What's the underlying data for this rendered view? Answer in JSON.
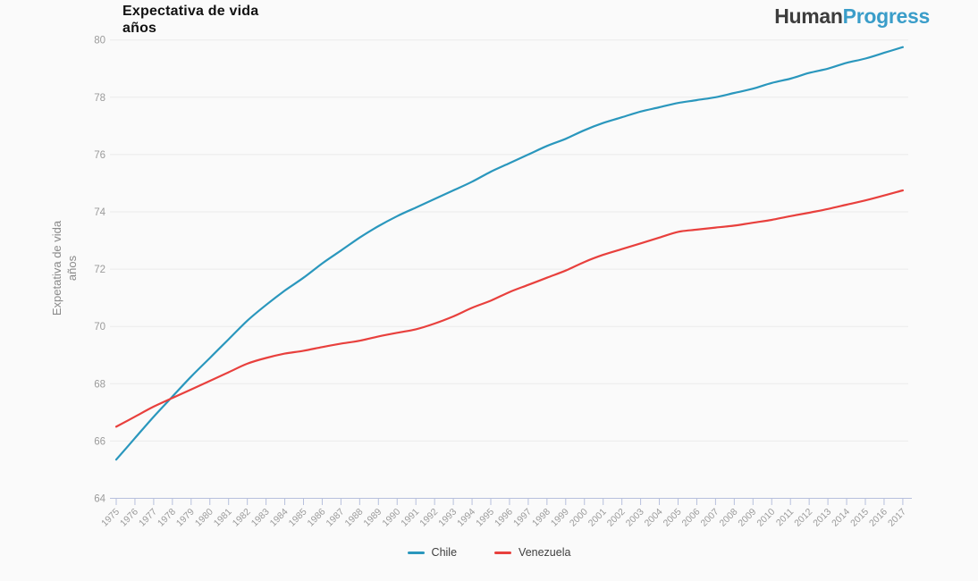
{
  "logo": {
    "part1": "Human",
    "part2": "Progress"
  },
  "colors": {
    "background": "#fafafa",
    "grid": "#ebebeb",
    "axis": "#b7c0dd",
    "tick_text": "#9b9b9b",
    "logo_human": "#3d3d3d",
    "logo_progress": "#3a9dc9"
  },
  "chart_data": {
    "type": "line",
    "title": "Expectativa de vida",
    "subtitle": "años",
    "ylabel_line1": "Expetativa de vida",
    "ylabel_line2": "años",
    "ylim": [
      64,
      80
    ],
    "yticks": [
      64,
      66,
      68,
      70,
      72,
      74,
      76,
      78,
      80
    ],
    "grid": true,
    "legend_position": "bottom",
    "x": [
      1975,
      1976,
      1977,
      1978,
      1979,
      1980,
      1981,
      1982,
      1983,
      1984,
      1985,
      1986,
      1987,
      1988,
      1989,
      1990,
      1991,
      1992,
      1993,
      1994,
      1995,
      1996,
      1997,
      1998,
      1999,
      2000,
      2001,
      2002,
      2003,
      2004,
      2005,
      2006,
      2007,
      2008,
      2009,
      2010,
      2011,
      2012,
      2013,
      2014,
      2015,
      2016,
      2017
    ],
    "series": [
      {
        "name": "Chile",
        "color": "#2a97bd",
        "values": [
          65.35,
          66.1,
          66.85,
          67.55,
          68.25,
          68.9,
          69.55,
          70.2,
          70.75,
          71.25,
          71.7,
          72.2,
          72.65,
          73.1,
          73.5,
          73.85,
          74.15,
          74.45,
          74.75,
          75.05,
          75.4,
          75.7,
          76.0,
          76.3,
          76.55,
          76.85,
          77.1,
          77.3,
          77.5,
          77.65,
          77.8,
          77.9,
          78.0,
          78.15,
          78.3,
          78.5,
          78.65,
          78.85,
          79.0,
          79.2,
          79.35,
          79.55,
          79.75
        ]
      },
      {
        "name": "Venezuela",
        "color": "#e8403d",
        "values": [
          66.5,
          66.85,
          67.2,
          67.5,
          67.8,
          68.1,
          68.4,
          68.7,
          68.9,
          69.05,
          69.15,
          69.28,
          69.4,
          69.5,
          69.65,
          69.78,
          69.9,
          70.1,
          70.35,
          70.65,
          70.9,
          71.2,
          71.45,
          71.7,
          71.95,
          72.25,
          72.5,
          72.7,
          72.9,
          73.1,
          73.3,
          73.38,
          73.45,
          73.52,
          73.62,
          73.72,
          73.85,
          73.97,
          74.1,
          74.25,
          74.4,
          74.57,
          74.75
        ]
      }
    ]
  }
}
